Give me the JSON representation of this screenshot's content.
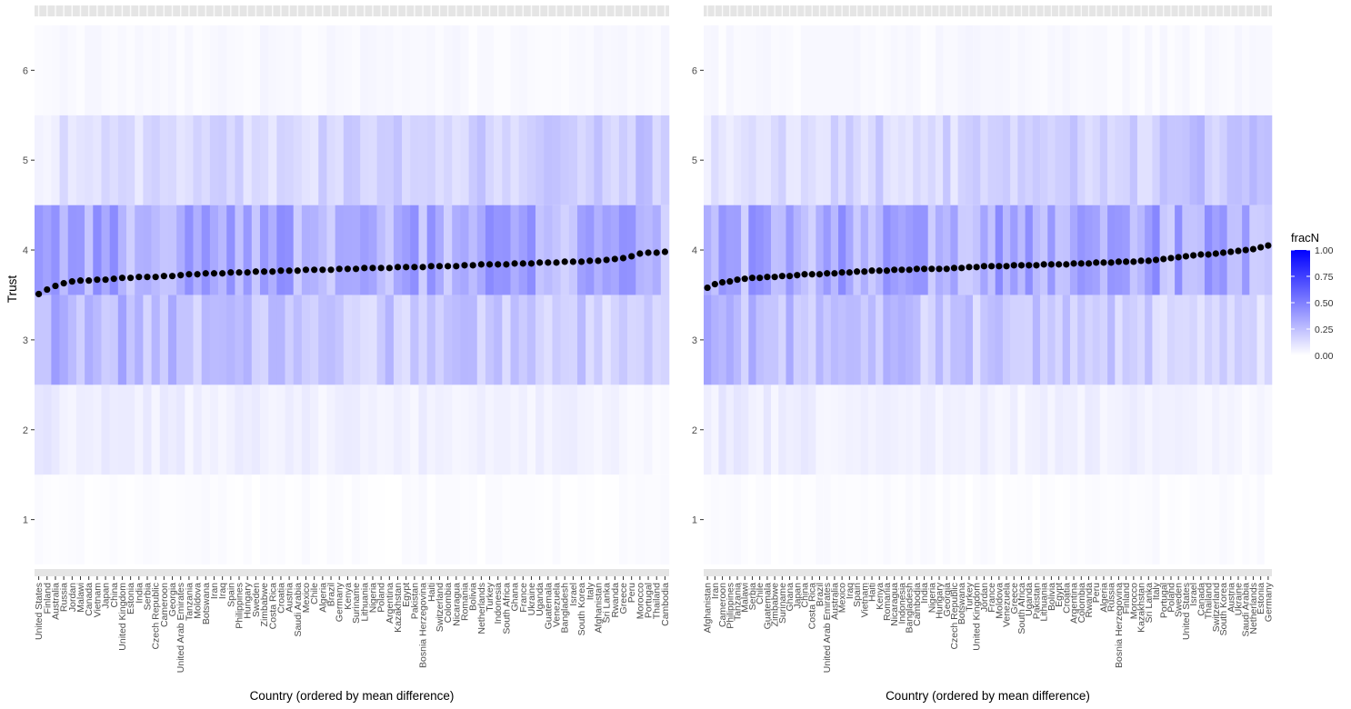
{
  "chart_data": {
    "type": "heatmap",
    "ylabel": "Trust",
    "trust_levels": [
      1,
      2,
      3,
      4,
      5,
      6
    ],
    "y_ticks": [
      "1",
      "2",
      "3",
      "4",
      "5",
      "6"
    ],
    "ylim": [
      0.45,
      6.6
    ],
    "legend": {
      "title": "fracN",
      "ticks": [
        "1.00",
        "0.75",
        "0.50",
        "0.25",
        "0.00"
      ],
      "range": [
        0,
        1
      ],
      "low_color": "#ffffff",
      "high_color": "#0000ff",
      "placement": "right"
    },
    "colors": {
      "panel_background": "#ffffff",
      "strip": "#e5e5e5",
      "point": "#000000"
    },
    "panels": [
      {
        "xlabel": "Country (ordered by mean difference)",
        "countries": [
          "United States",
          "Finland",
          "Australia",
          "Russia",
          "Jordan",
          "Malawi",
          "Canada",
          "Vietnam",
          "Japan",
          "China",
          "United Kingdom",
          "Estonia",
          "India",
          "Serbia",
          "Czech Republic",
          "Cameroon",
          "Georgia",
          "United Arab Emirates",
          "Tanzania",
          "Moldova",
          "Botswana",
          "Iran",
          "Iraq",
          "Spain",
          "Philippines",
          "Hungary",
          "Sweden",
          "Zimbabwe",
          "Costa Rica",
          "Croatia",
          "Austria",
          "Saudi Arabia",
          "Mexico",
          "Chile",
          "Algeria",
          "Brazil",
          "Germany",
          "Kenya",
          "Suriname",
          "Lithuania",
          "Nigeria",
          "Poland",
          "Argentina",
          "Kazakhstan",
          "Egypt",
          "Pakistan",
          "Bosnia Herzegovina",
          "Haiti",
          "Switzerland",
          "Colombia",
          "Nicaragua",
          "Romania",
          "Bolivia",
          "Netherlands",
          "Turkey",
          "Indonesia",
          "South Africa",
          "Ghana",
          "France",
          "Ukraine",
          "Uganda",
          "Guatemala",
          "Venezuela",
          "Bangladesh",
          "Israel",
          "South Korea",
          "Italy",
          "Afghanistan",
          "Sri Lanka",
          "Rwanda",
          "Greece",
          "Peru",
          "Morocco",
          "Portugal",
          "Thailand",
          "Cambodia"
        ],
        "mean_trust": [
          3.51,
          3.56,
          3.6,
          3.63,
          3.65,
          3.66,
          3.66,
          3.67,
          3.67,
          3.68,
          3.69,
          3.69,
          3.7,
          3.7,
          3.7,
          3.71,
          3.71,
          3.72,
          3.73,
          3.73,
          3.74,
          3.74,
          3.74,
          3.75,
          3.75,
          3.75,
          3.76,
          3.76,
          3.76,
          3.77,
          3.77,
          3.77,
          3.78,
          3.78,
          3.78,
          3.78,
          3.79,
          3.79,
          3.79,
          3.8,
          3.8,
          3.8,
          3.8,
          3.81,
          3.81,
          3.81,
          3.81,
          3.82,
          3.82,
          3.82,
          3.82,
          3.83,
          3.83,
          3.84,
          3.84,
          3.84,
          3.84,
          3.85,
          3.85,
          3.85,
          3.86,
          3.86,
          3.86,
          3.87,
          3.87,
          3.87,
          3.88,
          3.88,
          3.89,
          3.9,
          3.91,
          3.93,
          3.96,
          3.97,
          3.97,
          3.98
        ]
      },
      {
        "xlabel": "Country (ordered by mean difference)",
        "countries": [
          "Afghanistan",
          "Iran",
          "Cameroon",
          "Philippines",
          "Tanzania",
          "Malawi",
          "Serbia",
          "Chile",
          "Guatemala",
          "Zimbabwe",
          "Suriname",
          "Ghana",
          "Japan",
          "China",
          "Costa Rica",
          "Brazil",
          "United Arab Emirates",
          "Australia",
          "Mexico",
          "Iraq",
          "Spain",
          "Vietnam",
          "Haiti",
          "Kenya",
          "Romania",
          "Nicaragua",
          "Indonesia",
          "Bangladesh",
          "Cambodia",
          "India",
          "Nigeria",
          "Hungary",
          "Georgia",
          "Czech Republic",
          "Botswana",
          "Turkey",
          "United Kingdom",
          "Jordan",
          "France",
          "Moldova",
          "Venezuela",
          "Greece",
          "South Africa",
          "Uganda",
          "Pakistan",
          "Lithuania",
          "Bolivia",
          "Egypt",
          "Croatia",
          "Argentina",
          "Colombia",
          "Rwanda",
          "Peru",
          "Algeria",
          "Russia",
          "Bosnia Herzegovina",
          "Finland",
          "Morocco",
          "Kazakhstan",
          "Sri Lanka",
          "Italy",
          "Portugal",
          "Poland",
          "Sweden",
          "United States",
          "Israel",
          "Canada",
          "Thailand",
          "Switzerland",
          "South Korea",
          "Austria",
          "Ukraine",
          "Saudi Arabia",
          "Netherlands",
          "Estonia",
          "Germany"
        ],
        "mean_trust": [
          3.58,
          3.62,
          3.64,
          3.65,
          3.67,
          3.68,
          3.69,
          3.69,
          3.7,
          3.7,
          3.71,
          3.71,
          3.72,
          3.73,
          3.73,
          3.73,
          3.74,
          3.74,
          3.75,
          3.75,
          3.76,
          3.76,
          3.77,
          3.77,
          3.77,
          3.78,
          3.78,
          3.78,
          3.79,
          3.79,
          3.79,
          3.79,
          3.79,
          3.8,
          3.8,
          3.81,
          3.81,
          3.82,
          3.82,
          3.82,
          3.82,
          3.83,
          3.83,
          3.83,
          3.83,
          3.84,
          3.84,
          3.84,
          3.84,
          3.85,
          3.85,
          3.85,
          3.86,
          3.86,
          3.86,
          3.87,
          3.87,
          3.87,
          3.88,
          3.88,
          3.89,
          3.9,
          3.91,
          3.92,
          3.93,
          3.94,
          3.95,
          3.95,
          3.96,
          3.97,
          3.98,
          3.99,
          4.0,
          4.01,
          4.03,
          4.05
        ]
      }
    ]
  }
}
